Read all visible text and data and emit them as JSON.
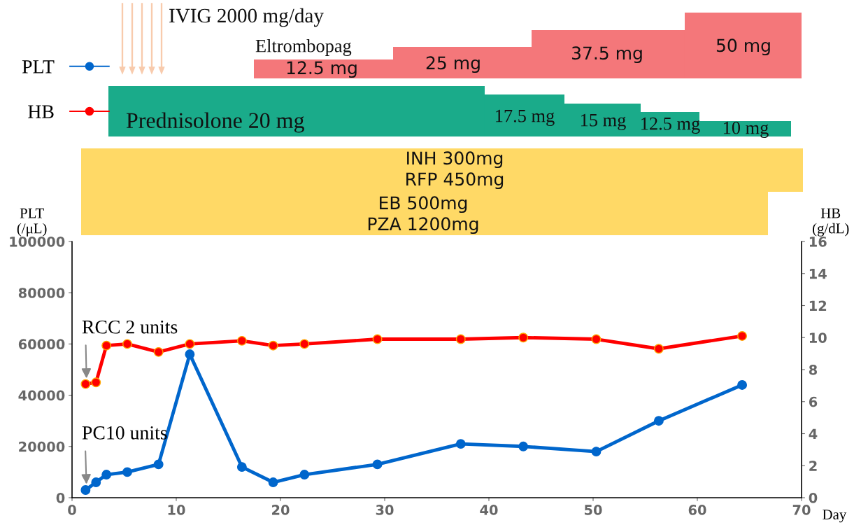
{
  "chart_data": [
    {
      "type": "other",
      "annotations": [
        "IVIG 2000 mg/day",
        "Eltrombopag",
        "12.5 mg",
        "25 mg",
        "37.5 mg",
        "50 mg",
        "Prednisolone 20 mg",
        "17.5 mg",
        "15 mg",
        "12.5 mg",
        "10 mg",
        "INH 300mg",
        "RFP 450mg",
        "EB 500mg",
        "PZA 1200mg"
      ]
    },
    {
      "type": "line",
      "xlabel": "Day",
      "ylabel": "PLT\n(/μL)",
      "y2label": "HB\n(g/dL)",
      "xlim": [
        0,
        70
      ],
      "xticks": [
        0,
        10,
        20,
        30,
        40,
        50,
        60,
        70
      ],
      "ylim": [
        0,
        100000
      ],
      "yticks": [
        0,
        20000,
        40000,
        60000,
        80000,
        100000
      ],
      "y2lim": [
        0,
        16
      ],
      "y2ticks": [
        0,
        2,
        4,
        6,
        8,
        10,
        12,
        14,
        16
      ],
      "marker": "circle",
      "legend": "top left",
      "grid": false,
      "annotations": [
        {
          "text": "RCC 2 units",
          "x": 1.4,
          "y": 44300
        },
        {
          "text": "PC10 units",
          "x": 1.4,
          "y": 3000
        }
      ],
      "series": [
        {
          "name": "PLT",
          "color": "#0066cc",
          "axis": "y",
          "x": [
            1.3,
            2.3,
            3.3,
            5.3,
            8.3,
            11.3,
            16.3,
            19.3,
            22.3,
            29.3,
            37.3,
            43.3,
            50.3,
            56.3,
            64.3
          ],
          "values": [
            3000,
            6000,
            9000,
            10000,
            13000,
            56000,
            12000,
            6000,
            9000,
            13000,
            21000,
            20000,
            18000,
            30000,
            44000
          ]
        },
        {
          "name": "HB",
          "color": "#ff0000",
          "axis": "y2",
          "x": [
            1.3,
            2.3,
            3.3,
            5.3,
            8.3,
            11.3,
            16.3,
            19.3,
            22.3,
            29.3,
            37.3,
            43.3,
            50.3,
            56.3,
            64.3
          ],
          "values": [
            7.1,
            7.2,
            9.5,
            9.6,
            9.1,
            9.6,
            9.8,
            9.5,
            9.6,
            9.9,
            9.9,
            10.0,
            9.9,
            9.3,
            10.1
          ]
        }
      ]
    }
  ]
}
